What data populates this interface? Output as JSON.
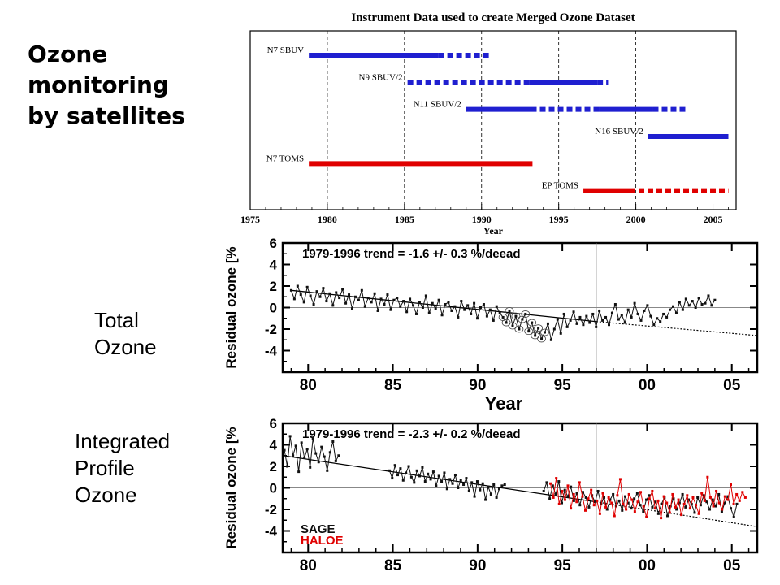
{
  "slide": {
    "title_lines": [
      "Ozone",
      "monitoring",
      "by satellites"
    ],
    "total_label_lines": [
      "Total",
      "Ozone"
    ],
    "profile_label_lines": [
      "Integrated",
      "Profile",
      "Ozone"
    ]
  },
  "colors": {
    "sbuv": "#1f1fd0",
    "toms": "#e00000",
    "sage": "#111111",
    "haloe": "#e00000"
  },
  "chart_data": [
    {
      "type": "timeline",
      "title": "Instrument Data used to create Merged Ozone Dataset",
      "xlabel": "Year",
      "xlim": [
        1975,
        2006.5
      ],
      "xticks": [
        1975,
        1980,
        1985,
        1990,
        1995,
        2000,
        2005
      ],
      "xtick_labels": [
        "1975",
        "1980",
        "1985",
        "1990",
        "1995",
        "2000",
        "2005"
      ],
      "vlines": [
        1980,
        1985,
        1990,
        1995,
        2000
      ],
      "instruments": [
        {
          "name": "N7 SBUV",
          "color": "#1f1fd0",
          "segments": [
            {
              "from": 1978.8,
              "to": 1987.2,
              "style": "solid"
            },
            {
              "from": 1987.2,
              "to": 1990.6,
              "style": "dashed"
            }
          ]
        },
        {
          "name": "N9 SBUV/2",
          "color": "#1f1fd0",
          "segments": [
            {
              "from": 1985.2,
              "to": 1993.1,
              "style": "dashed"
            },
            {
              "from": 1993.1,
              "to": 1997.5,
              "style": "solid"
            },
            {
              "from": 1997.5,
              "to": 1998.2,
              "style": "dashed"
            }
          ]
        },
        {
          "name": "N11 SBUV/2",
          "color": "#1f1fd0",
          "segments": [
            {
              "from": 1989.0,
              "to": 1993.2,
              "style": "solid"
            },
            {
              "from": 1993.2,
              "to": 1997.6,
              "style": "dashed"
            },
            {
              "from": 1997.6,
              "to": 2001.1,
              "style": "solid"
            },
            {
              "from": 2001.1,
              "to": 2003.4,
              "style": "dashed"
            }
          ]
        },
        {
          "name": "N16 SBUV/2",
          "color": "#1f1fd0",
          "segments": [
            {
              "from": 2000.8,
              "to": 2006.0,
              "style": "solid"
            }
          ]
        },
        {
          "name": "N7 TOMS",
          "color": "#e00000",
          "segments": [
            {
              "from": 1978.8,
              "to": 1993.3,
              "style": "solid"
            }
          ]
        },
        {
          "name": "EP TOMS",
          "color": "#e00000",
          "segments": [
            {
              "from": 1996.6,
              "to": 1999.6,
              "style": "solid"
            },
            {
              "from": 1999.6,
              "to": 2006.0,
              "style": "dashed"
            }
          ]
        }
      ]
    },
    {
      "type": "line",
      "annotation": "1979-1996 trend = -1.6 +/- 0.3 %/deead",
      "xlabel": "Year",
      "ylabel": "Residual ozone [%",
      "xlim": [
        1978.5,
        2006.5
      ],
      "ylim": [
        -6,
        6
      ],
      "yticks": [
        6,
        4,
        2,
        0,
        -2,
        -4
      ],
      "xticks": [
        1980,
        1985,
        1990,
        1995,
        2000,
        2005
      ],
      "xtick_labels": [
        "80",
        "85",
        "90",
        "95",
        "00",
        "05"
      ],
      "vline": 1997,
      "trend": {
        "x0": 1979,
        "y0": 1.6,
        "x1": 1997,
        "y1": -1.3
      },
      "trend_extension": {
        "x0": 1997,
        "y0": -1.3,
        "x1": 2006.5,
        "y1": -2.6
      },
      "circled_range": [
        1991.5,
        1994.0
      ],
      "series": [
        {
          "color": "#111111",
          "x_start": 1979.0,
          "x_end": 2004.0,
          "values": [
            1.6,
            0.8,
            2.0,
            1.2,
            0.5,
            1.9,
            1.1,
            0.3,
            1.5,
            1.0,
            1.8,
            0.6,
            1.3,
            0.2,
            1.4,
            0.9,
            1.7,
            0.4,
            1.2,
            -0.1,
            1.0,
            0.7,
            1.6,
            0.1,
            0.9,
            0.5,
            1.3,
            -0.3,
            0.8,
            0.3,
            1.2,
            -0.2,
            0.7,
            0.9,
            0.1,
            0.6,
            -0.4,
            0.8,
            0.2,
            -0.6,
            0.5,
            0.0,
            1.1,
            -0.5,
            0.4,
            -0.1,
            0.7,
            -0.7,
            0.3,
            0.5,
            -0.3,
            0.1,
            -0.9,
            0.6,
            -0.2,
            0.2,
            -0.6,
            0.4,
            -1.0,
            0.0,
            0.3,
            -0.8,
            -0.2,
            -1.2,
            0.1,
            -0.5,
            -0.9,
            -1.4,
            -0.3,
            -1.7,
            -0.8,
            -2.0,
            -1.1,
            -0.6,
            -2.2,
            -1.4,
            -2.6,
            -1.9,
            -2.9,
            -2.3,
            -1.5,
            -3.0,
            -2.0,
            -1.1,
            -2.4,
            -0.6,
            -1.8,
            -1.2,
            -0.4,
            -1.5,
            -0.9,
            -1.6,
            -0.8,
            -1.4,
            -0.6,
            -1.8,
            -0.3,
            -1.2,
            -0.9,
            -1.6,
            -0.5,
            0.3,
            -1.1,
            -0.7,
            -1.4,
            -0.2,
            -0.9,
            0.4,
            -0.6,
            -1.2,
            -0.3,
            0.2,
            -0.8,
            -1.6,
            -1.0,
            -1.3,
            -0.6,
            -0.9,
            -0.2,
            0.1,
            -0.5,
            0.5,
            -0.2,
            0.8,
            0.2,
            0.6,
            0.0,
            0.9,
            0.3,
            0.4,
            1.1,
            0.2,
            0.7
          ]
        }
      ]
    },
    {
      "type": "line",
      "annotation": "1979-1996 trend = -2.3 +/- 0.2 %/deead",
      "xlabel": "",
      "ylabel": "Residual ozone [%",
      "xlim": [
        1978.5,
        2006.5
      ],
      "ylim": [
        -6,
        6
      ],
      "yticks": [
        6,
        4,
        2,
        0,
        -2,
        -4
      ],
      "xticks": [
        1980,
        1985,
        1990,
        1995,
        2000,
        2005
      ],
      "xtick_labels": [
        "80",
        "85",
        "90",
        "95",
        "00",
        "05"
      ],
      "vline": 1997,
      "trend": {
        "x0": 1978.5,
        "y0": 3.0,
        "x1": 1997,
        "y1": -1.3
      },
      "trend_extension": {
        "x0": 1997,
        "y0": -1.3,
        "x1": 2006.5,
        "y1": -3.6
      },
      "legend": [
        {
          "name": "SAGE",
          "color": "#111111"
        },
        {
          "name": "HALOE",
          "color": "#e00000"
        }
      ],
      "series": [
        {
          "name": "SAGE",
          "color": "#111111",
          "segments": [
            {
              "x_start": 1978.6,
              "x_end": 1981.8,
              "values": [
                3.5,
                2.0,
                4.8,
                3.0,
                3.9,
                1.5,
                4.2,
                2.8,
                3.6,
                1.9,
                4.6,
                3.2,
                2.4,
                3.8,
                2.9,
                1.6,
                3.3,
                4.3,
                2.5,
                3.0
              ]
            },
            {
              "x_start": 1984.8,
              "x_end": 1991.6,
              "values": [
                1.6,
                0.9,
                2.1,
                1.2,
                1.8,
                0.7,
                1.4,
                2.0,
                1.0,
                0.5,
                1.6,
                1.1,
                1.9,
                0.6,
                1.3,
                0.8,
                1.5,
                0.2,
                1.1,
                0.6,
                1.4,
                -0.1,
                0.8,
                0.4,
                1.2,
                0.0,
                0.7,
                0.3,
                0.9,
                -0.3,
                0.5,
                -0.8,
                0.6,
                -0.2,
                0.4,
                -1.1,
                0.1,
                -0.6,
                0.3,
                -0.9,
                -0.1,
                0.2,
                0.3
              ]
            },
            {
              "x_start": 1993.9,
              "x_end": 2005.3,
              "values": [
                -0.3,
                0.5,
                -1.0,
                0.2,
                -0.6,
                0.6,
                -1.4,
                -0.2,
                -0.8,
                0.1,
                -1.2,
                -0.5,
                -1.6,
                -0.4,
                -0.9,
                -1.8,
                -0.7,
                -1.3,
                -0.3,
                -1.5,
                -0.9,
                -2.0,
                -1.1,
                -0.6,
                -1.7,
                -1.2,
                -2.1,
                -0.8,
                -1.4,
                -1.9,
                -1.0,
                -0.5,
                -1.6,
                -2.2,
                -1.1,
                -0.7,
                -1.8,
                -1.3,
                -2.4,
                -1.5,
                -0.9,
                -2.6,
                -1.7,
                -1.0,
                -2.0,
                -1.4,
                -0.6,
                -1.8,
                -1.1,
                -1.5,
                -2.3,
                -0.9,
                -1.6,
                -0.7,
                -1.3,
                -2.0,
                -1.1,
                -1.7,
                -0.6,
                -2.2,
                -1.4,
                -0.8,
                -1.9,
                -2.7,
                -1.5
              ]
            }
          ]
        },
        {
          "name": "HALOE",
          "color": "#e00000",
          "segments": [
            {
              "x_start": 1994.3,
              "x_end": 2005.8,
              "values": [
                0.4,
                -0.9,
                0.9,
                -1.5,
                -0.3,
                -1.1,
                0.2,
                -1.9,
                -0.6,
                -1.3,
                0.5,
                -0.8,
                -2.1,
                -1.0,
                -0.2,
                -1.6,
                -1.2,
                -2.4,
                -0.5,
                -1.8,
                -0.9,
                -1.4,
                -2.6,
                -0.7,
                0.8,
                -1.5,
                -2.0,
                -0.6,
                -1.1,
                -2.2,
                -1.3,
                -0.4,
                -1.7,
                -2.7,
                -1.0,
                -0.3,
                -1.9,
                -1.2,
                -2.8,
                -0.8,
                -1.4,
                -2.3,
                -0.6,
                -1.8,
                -1.1,
                -2.5,
                -1.5,
                -0.7,
                -1.9,
                -0.9,
                -1.6,
                -2.4,
                -0.5,
                -1.2,
                1.0,
                -0.9,
                -1.7,
                -0.3,
                -1.4,
                -2.0,
                -0.8,
                -1.1,
                0.3,
                -1.5,
                -0.6,
                -1.2,
                -0.4,
                -0.9
              ]
            }
          ]
        }
      ]
    }
  ]
}
